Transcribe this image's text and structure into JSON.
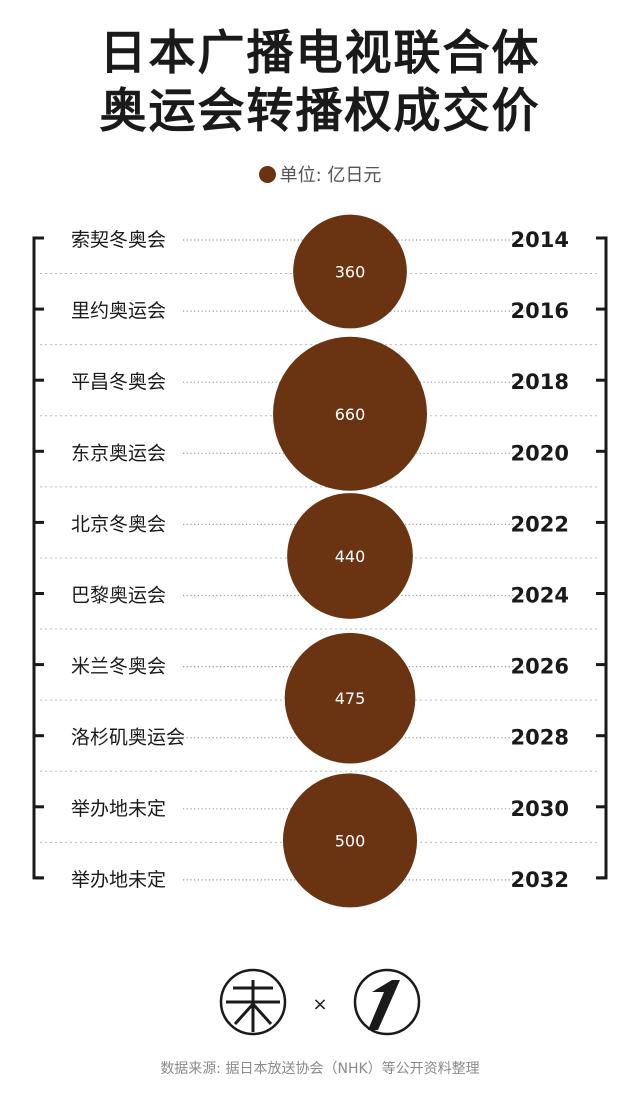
{
  "title_lines": [
    "日本广播电视联合体",
    "奥运会转播权成交价"
  ],
  "unit_label": "单位: 亿日元",
  "colors": {
    "bubble": "#6a3413",
    "bubble_text": "#ffffff",
    "text": "#1a1a1a",
    "dotted": "#bdbdbd"
  },
  "chart_data": {
    "type": "bubble",
    "title": "",
    "rows": [
      {
        "event": "索契冬奥会",
        "year": "2014"
      },
      {
        "event": "里约奥运会",
        "year": "2016"
      },
      {
        "event": "平昌冬奥会",
        "year": "2018"
      },
      {
        "event": "东京奥运会",
        "year": "2020"
      },
      {
        "event": "北京冬奥会",
        "year": "2022"
      },
      {
        "event": "巴黎奥运会",
        "year": "2024"
      },
      {
        "event": "米兰冬奥会",
        "year": "2026"
      },
      {
        "event": "洛杉矶奥运会",
        "year": "2028"
      },
      {
        "event": "举办地未定",
        "year": "2030"
      },
      {
        "event": "举办地未定",
        "year": "2032"
      }
    ],
    "bundles": [
      {
        "events": [
          "2014",
          "2016"
        ],
        "value": 360,
        "label": "360"
      },
      {
        "events": [
          "2018",
          "2020"
        ],
        "value": 660,
        "label": "660"
      },
      {
        "events": [
          "2022",
          "2024"
        ],
        "value": 440,
        "label": "440"
      },
      {
        "events": [
          "2026",
          "2028"
        ],
        "value": 475,
        "label": "475"
      },
      {
        "events": [
          "2030",
          "2032"
        ],
        "value": 500,
        "label": "500"
      }
    ]
  },
  "logos": {
    "left_icon": "weilai-logo-icon",
    "separator": "×",
    "right_icon": "number-one-logo-icon"
  },
  "source": "数据来源: 据日本放送协会（NHK）等公开资料整理"
}
